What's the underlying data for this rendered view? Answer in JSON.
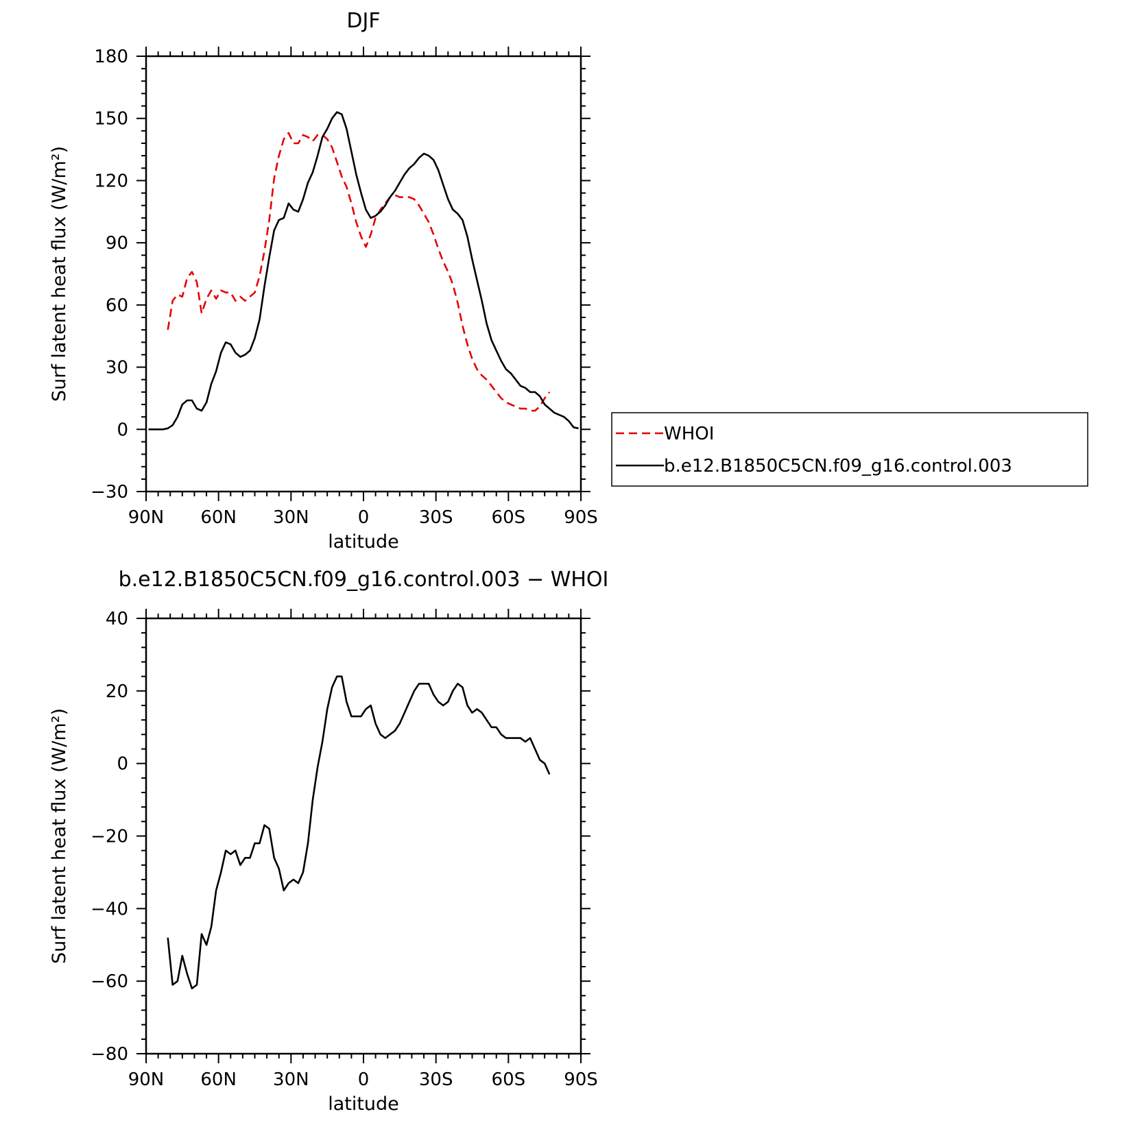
{
  "chart_data": [
    {
      "type": "line",
      "title": "DJF",
      "xlabel": "latitude",
      "ylabel": "Surf latent heat flux (W/m²)",
      "xlim": [
        90,
        -90
      ],
      "ylim": [
        -30,
        180
      ],
      "x_tick_values": [
        90,
        60,
        30,
        0,
        -30,
        -60,
        -90
      ],
      "x_tick_labels": [
        "90N",
        "60N",
        "30N",
        "0",
        "30S",
        "60S",
        "90S"
      ],
      "y_tick_values": [
        -30,
        0,
        30,
        60,
        90,
        120,
        150,
        180
      ],
      "y_tick_labels": [
        "−30",
        "0",
        "30",
        "60",
        "90",
        "120",
        "150",
        "180"
      ],
      "legend_position": "right",
      "series": [
        {
          "name": "WHOI",
          "color": "#e60000",
          "dash": "dashed",
          "x": [
            81,
            79,
            77,
            75,
            73,
            71,
            69,
            67,
            65,
            63,
            61,
            59,
            57,
            55,
            53,
            51,
            49,
            47,
            45,
            43,
            41,
            39,
            37,
            35,
            33,
            31,
            29,
            27,
            25,
            23,
            21,
            19,
            17,
            15,
            13,
            11,
            9,
            7,
            5,
            3,
            1,
            -1,
            -3,
            -5,
            -7,
            -9,
            -11,
            -13,
            -15,
            -17,
            -19,
            -21,
            -23,
            -25,
            -27,
            -29,
            -31,
            -33,
            -35,
            -37,
            -39,
            -41,
            -43,
            -45,
            -47,
            -49,
            -51,
            -53,
            -55,
            -57,
            -59,
            -61,
            -63,
            -65,
            -67,
            -69,
            -71,
            -73,
            -75,
            -77
          ],
          "y": [
            48,
            62,
            65,
            64,
            73,
            76,
            71,
            56,
            63,
            67,
            63,
            67,
            66,
            66,
            62,
            64,
            62,
            64,
            66,
            74,
            86,
            101,
            121,
            132,
            140,
            143,
            138,
            138,
            142,
            141,
            139,
            142,
            142,
            140,
            136,
            129,
            122,
            117,
            109,
            100,
            93,
            88,
            94,
            102,
            106,
            109,
            112,
            113,
            112,
            112,
            112,
            111,
            108,
            104,
            100,
            94,
            87,
            81,
            76,
            70,
            61,
            50,
            41,
            34,
            29,
            26,
            24,
            21,
            18,
            15,
            13,
            12,
            11,
            10,
            10,
            9,
            9,
            11,
            15,
            18
          ]
        },
        {
          "name": "b.e12.B1850C5CN.f09_g16.control.003",
          "color": "#000000",
          "dash": "solid",
          "x": [
            89,
            87,
            85,
            83,
            81,
            79,
            77,
            75,
            73,
            71,
            69,
            67,
            65,
            63,
            61,
            59,
            57,
            55,
            53,
            51,
            49,
            47,
            45,
            43,
            41,
            39,
            37,
            35,
            33,
            31,
            29,
            27,
            25,
            23,
            21,
            19,
            17,
            15,
            13,
            11,
            9,
            7,
            5,
            3,
            1,
            -1,
            -3,
            -5,
            -7,
            -9,
            -11,
            -13,
            -15,
            -17,
            -19,
            -21,
            -23,
            -25,
            -27,
            -29,
            -31,
            -33,
            -35,
            -37,
            -39,
            -41,
            -43,
            -45,
            -47,
            -49,
            -51,
            -53,
            -55,
            -57,
            -59,
            -61,
            -63,
            -65,
            -67,
            -69,
            -71,
            -73,
            -75,
            -77,
            -79,
            -81,
            -83,
            -85,
            -87,
            -89
          ],
          "y": [
            0,
            0,
            0,
            0,
            0.5,
            2,
            6,
            12,
            14,
            14,
            10,
            9,
            13,
            22,
            28,
            37,
            42,
            41,
            37,
            35,
            36,
            38,
            44,
            53,
            69,
            83,
            96,
            101,
            102,
            109,
            106,
            105,
            111,
            119,
            124,
            132,
            141,
            145,
            150,
            153,
            152,
            145,
            134,
            123,
            114,
            106,
            102,
            103,
            105,
            108,
            112,
            115,
            119,
            123,
            126,
            128,
            131,
            133,
            132,
            130,
            125,
            118,
            111,
            106,
            104,
            101,
            93,
            82,
            72,
            62,
            51,
            43,
            38,
            33,
            29,
            27,
            24,
            21,
            20,
            18,
            18,
            16,
            12,
            10,
            8,
            7,
            6,
            4,
            1,
            0.5
          ]
        }
      ]
    },
    {
      "type": "line",
      "title": "b.e12.B1850C5CN.f09_g16.control.003 − WHOI",
      "xlabel": "latitude",
      "ylabel": "Surf latent heat flux (W/m²)",
      "xlim": [
        90,
        -90
      ],
      "ylim": [
        -80,
        40
      ],
      "x_tick_values": [
        90,
        60,
        30,
        0,
        -30,
        -60,
        -90
      ],
      "x_tick_labels": [
        "90N",
        "60N",
        "30N",
        "0",
        "30S",
        "60S",
        "90S"
      ],
      "y_tick_values": [
        -80,
        -60,
        -40,
        -20,
        0,
        20,
        40
      ],
      "y_tick_labels": [
        "−80",
        "−60",
        "−40",
        "−20",
        "0",
        "20",
        "40"
      ],
      "series": [
        {
          "color": "#000000",
          "dash": "solid",
          "x": [
            81,
            79,
            77,
            75,
            73,
            71,
            69,
            67,
            65,
            63,
            61,
            59,
            57,
            55,
            53,
            51,
            49,
            47,
            45,
            43,
            41,
            39,
            37,
            35,
            33,
            31,
            29,
            27,
            25,
            23,
            21,
            19,
            17,
            15,
            13,
            11,
            9,
            7,
            5,
            3,
            1,
            -1,
            -3,
            -5,
            -7,
            -9,
            -11,
            -13,
            -15,
            -17,
            -19,
            -21,
            -23,
            -25,
            -27,
            -29,
            -31,
            -33,
            -35,
            -37,
            -39,
            -41,
            -43,
            -45,
            -47,
            -49,
            -51,
            -53,
            -55,
            -57,
            -59,
            -61,
            -63,
            -65,
            -67,
            -69,
            -71,
            -73,
            -75,
            -77
          ],
          "y": [
            -48,
            -61,
            -60,
            -53,
            -58,
            -62,
            -61,
            -47,
            -50,
            -45,
            -35,
            -30,
            -24,
            -25,
            -24,
            -28,
            -26,
            -26,
            -22,
            -22,
            -17,
            -18,
            -26,
            -29,
            -35,
            -33,
            -32,
            -33,
            -30,
            -22,
            -10,
            -1,
            6,
            15,
            21,
            24,
            24,
            17,
            13,
            13,
            13,
            15,
            16,
            11,
            8,
            7,
            8,
            9,
            11,
            14,
            17,
            20,
            22,
            22,
            22,
            19,
            17,
            16,
            17,
            20,
            22,
            21,
            16,
            14,
            15,
            14,
            12,
            10,
            10,
            8,
            7,
            7,
            7,
            7,
            6,
            7,
            4,
            1,
            0,
            -3
          ]
        }
      ]
    }
  ]
}
